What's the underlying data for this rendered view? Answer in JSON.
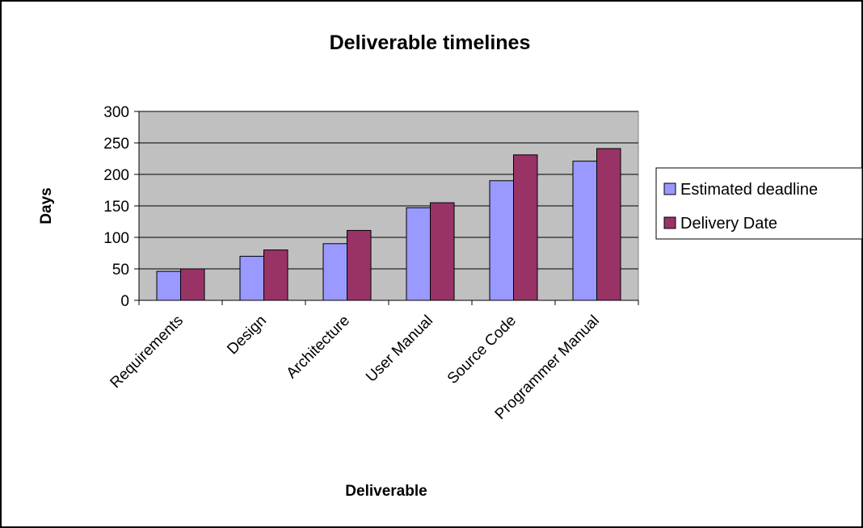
{
  "chart_data": {
    "type": "bar",
    "title": "Deliverable timelines",
    "xlabel": "Deliverable",
    "ylabel": "Days",
    "ylim": [
      0,
      300
    ],
    "yticks": [
      0,
      50,
      100,
      150,
      200,
      250,
      300
    ],
    "grid": true,
    "legend_position": "right",
    "categories": [
      "Requirements",
      "Design",
      "Architecture",
      "User Manual",
      "Source Code",
      "Programmer Manual"
    ],
    "series": [
      {
        "name": "Estimated deadline",
        "color": "#9999FF",
        "values": [
          46,
          70,
          90,
          147,
          190,
          221
        ]
      },
      {
        "name": "Delivery Date",
        "color": "#993366",
        "values": [
          50,
          80,
          111,
          155,
          231,
          241
        ]
      }
    ],
    "plot_background": "#C0C0C0"
  }
}
